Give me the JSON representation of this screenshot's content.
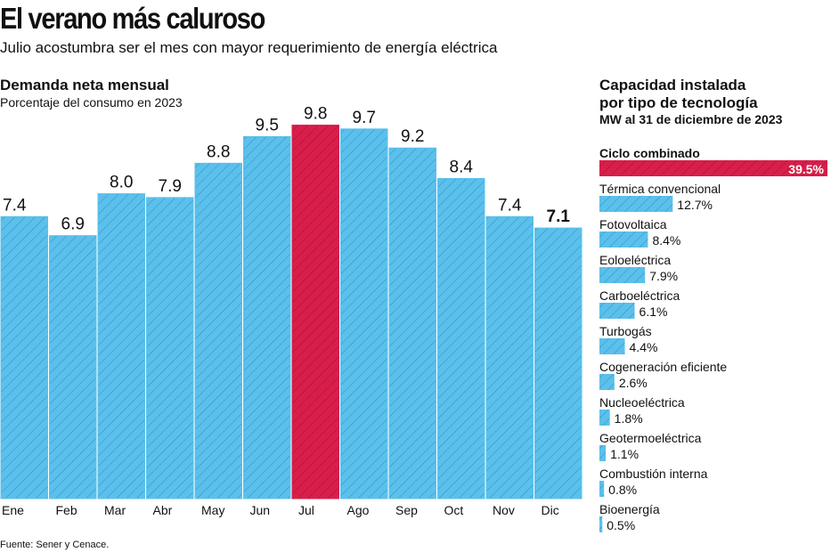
{
  "title": "El verano más caluroso",
  "subtitle": "Julio acostumbra ser el mes con mayor requerimiento de energía eléctrica",
  "source": "Fuente: Sener y Cenace.",
  "colors": {
    "bar": "#5bc0eb",
    "hatch": "#2f8fbf",
    "highlight": "#d81e4b",
    "highlight_hatch": "#a8102f"
  },
  "chart_data": [
    {
      "type": "bar",
      "title": "Demanda neta mensual",
      "subtitle": "Porcentaje del consumo en 2023",
      "categories": [
        "Ene",
        "Feb",
        "Mar",
        "Abr",
        "May",
        "Jun",
        "Jul",
        "Ago",
        "Sep",
        "Oct",
        "Nov",
        "Dic"
      ],
      "values": [
        7.4,
        6.9,
        8.0,
        7.9,
        8.8,
        9.5,
        9.8,
        9.7,
        9.2,
        8.4,
        7.4,
        7.1
      ],
      "labels": [
        "7.4",
        "6.9",
        "8.0",
        "7.9",
        "8.8",
        "9.5",
        "9.8",
        "9.7",
        "9.2",
        "8.4",
        "7.4",
        "7.1"
      ],
      "highlight": "Jul",
      "bold_label": "Dic",
      "ylim": [
        0,
        10
      ]
    },
    {
      "type": "bar",
      "orientation": "horizontal",
      "title": "Capacidad instalada por tipo de tecnología",
      "title_lines": [
        "Capacidad instalada",
        "por tipo de tecnología"
      ],
      "subtitle": "MW al 31 de diciembre de 2023",
      "categories": [
        "Ciclo combinado",
        "Térmica convencional",
        "Fotovoltaica",
        "Eoloeléctrica",
        "Carboeléctrica",
        "Turbogás",
        "Cogeneración eficiente",
        "Nucleoeléctrica",
        "Geotermoeléctrica",
        "Combustión interna",
        "Bioenergía"
      ],
      "values": [
        39.5,
        12.7,
        8.4,
        7.9,
        6.1,
        4.4,
        2.6,
        1.8,
        1.1,
        0.8,
        0.5
      ],
      "labels": [
        "39.5%",
        "12.7%",
        "8.4%",
        "7.9%",
        "6.1%",
        "4.4%",
        "2.6%",
        "1.8%",
        "1.1%",
        "0.8%",
        "0.5%"
      ],
      "highlight": "Ciclo combinado",
      "xlim": [
        0,
        39.5
      ]
    }
  ]
}
